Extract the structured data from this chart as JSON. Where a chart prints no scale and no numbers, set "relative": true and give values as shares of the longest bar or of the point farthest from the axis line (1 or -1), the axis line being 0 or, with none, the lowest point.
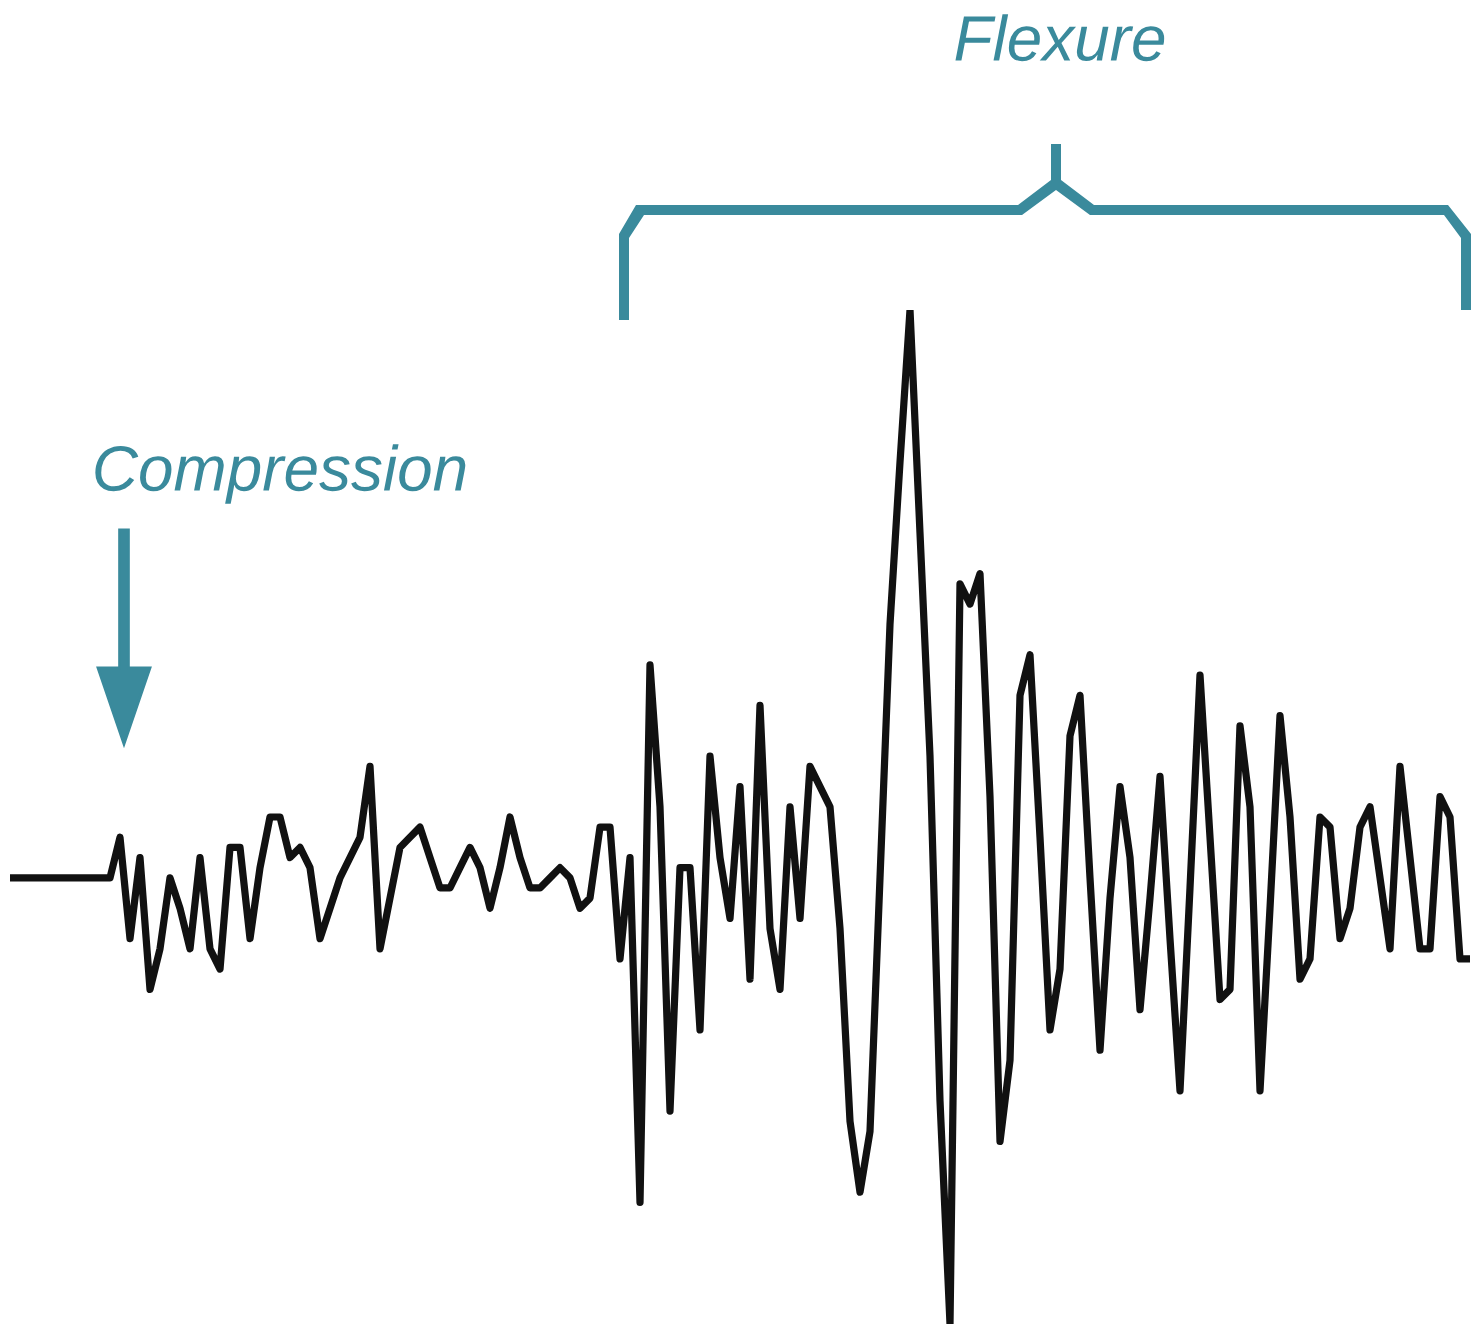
{
  "chart_data": {
    "type": "line",
    "relative": true,
    "legend": false,
    "marker": "none",
    "line_style": "solid",
    "annotations": [
      "Compression",
      "Flexure"
    ],
    "categories": [
      null,
      null,
      null,
      null,
      null,
      null,
      null,
      null,
      null,
      null,
      null,
      null,
      null,
      null,
      null,
      null,
      null,
      null,
      null,
      null,
      null,
      null,
      null,
      null,
      null,
      null,
      null,
      null,
      null,
      null,
      null,
      null,
      null,
      null,
      null,
      null,
      null,
      null,
      null,
      null,
      null,
      null,
      null,
      null,
      null,
      null,
      null,
      null,
      null,
      null,
      null,
      null,
      null,
      null,
      null,
      null,
      null,
      null,
      null,
      null,
      null,
      null,
      null,
      null,
      null,
      null,
      null,
      null,
      null,
      null,
      null,
      null,
      null,
      null,
      null,
      null,
      null,
      null,
      null,
      null,
      null,
      null,
      null,
      null,
      null,
      null,
      null,
      null,
      null,
      null,
      null,
      null,
      null,
      null,
      null,
      null,
      null,
      null,
      null,
      null,
      null,
      null,
      null,
      null,
      null,
      null,
      null,
      null,
      null,
      null,
      null,
      null,
      null,
      null,
      null,
      null,
      null,
      null,
      null,
      null,
      null,
      null,
      null,
      null,
      null,
      null,
      null,
      null,
      null,
      null,
      null,
      null,
      null,
      null,
      null,
      null,
      null,
      null,
      null,
      null,
      null,
      null,
      null,
      null,
      null,
      null,
      null
    ],
    "series": [
      {
        "color": "#111111",
        "values": [
          0.44,
          0.44,
          0.44,
          0.44,
          0.44,
          0.44,
          0.44,
          0.44,
          0.44,
          0.44,
          0.44,
          0.48,
          0.38,
          0.46,
          0.33,
          0.37,
          0.44,
          0.41,
          0.37,
          0.46,
          0.37,
          0.35,
          0.47,
          0.47,
          0.38,
          0.45,
          0.5,
          0.5,
          0.46,
          0.47,
          0.45,
          0.38,
          0.41,
          0.44,
          0.46,
          0.48,
          0.55,
          0.37,
          0.42,
          0.47,
          0.48,
          0.49,
          0.46,
          0.43,
          0.43,
          0.45,
          0.47,
          0.45,
          0.41,
          0.45,
          0.5,
          0.46,
          0.43,
          0.43,
          0.44,
          0.45,
          0.44,
          0.41,
          0.42,
          0.49,
          0.49,
          0.36,
          0.46,
          0.12,
          0.65,
          0.51,
          0.21,
          0.45,
          0.45,
          0.29,
          0.56,
          0.46,
          0.4,
          0.53,
          0.34,
          0.61,
          0.39,
          0.33,
          0.51,
          0.4,
          0.55,
          0.53,
          0.51,
          0.39,
          0.2,
          0.13,
          0.19,
          0.44,
          0.69,
          0.85,
          1.0,
          0.78,
          0.56,
          0.22,
          0.0,
          0.73,
          0.71,
          0.74,
          0.52,
          0.18,
          0.26,
          0.62,
          0.66,
          0.48,
          0.29,
          0.35,
          0.58,
          0.62,
          0.44,
          0.27,
          0.42,
          0.53,
          0.46,
          0.31,
          0.42,
          0.54,
          0.38,
          0.23,
          0.43,
          0.64,
          0.48,
          0.32,
          0.33,
          0.59,
          0.51,
          0.23,
          0.41,
          0.6,
          0.5,
          0.34,
          0.36,
          0.5,
          0.49,
          0.38,
          0.41,
          0.49,
          0.51,
          0.44,
          0.37,
          0.55,
          0.46,
          0.37,
          0.37,
          0.52,
          0.5,
          0.36,
          0.36
        ]
      }
    ]
  }
}
